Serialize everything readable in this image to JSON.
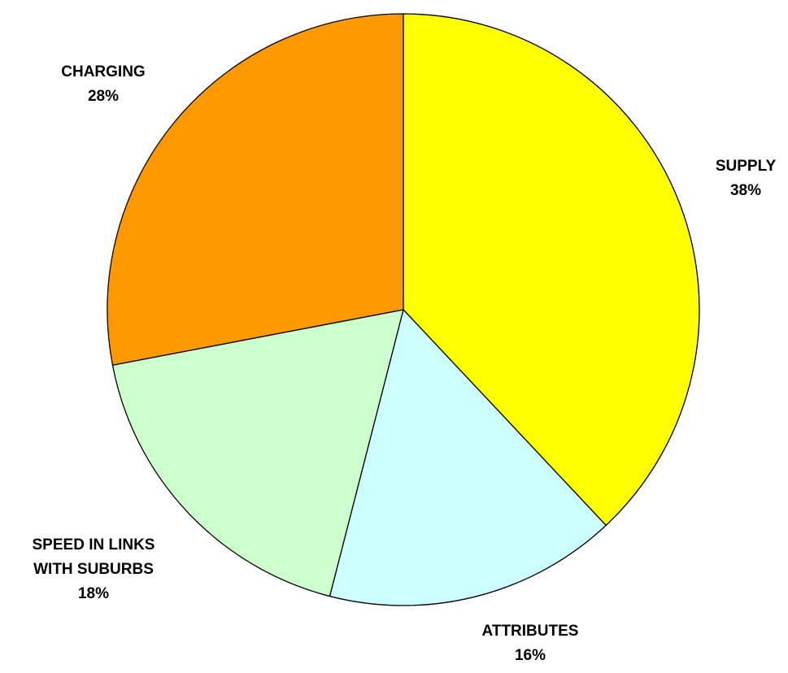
{
  "chart_data": {
    "type": "pie",
    "slices": [
      {
        "label": "SUPPLY",
        "value": 38,
        "value_label": "38%",
        "color": "#FFFF00"
      },
      {
        "label": "ATTRIBUTES",
        "value": 16,
        "value_label": "16%",
        "color": "#CCFFFF"
      },
      {
        "label": "SPEED IN LINKS WITH SUBURBS",
        "value": 18,
        "value_label": "18%",
        "color": "#CCFFCC"
      },
      {
        "label": "CHARGING",
        "value": 28,
        "value_label": "28%",
        "color": "#FF9900"
      }
    ],
    "start_angle": "12 o'clock",
    "direction": "clockwise",
    "labels_outside": true,
    "legend": false
  }
}
